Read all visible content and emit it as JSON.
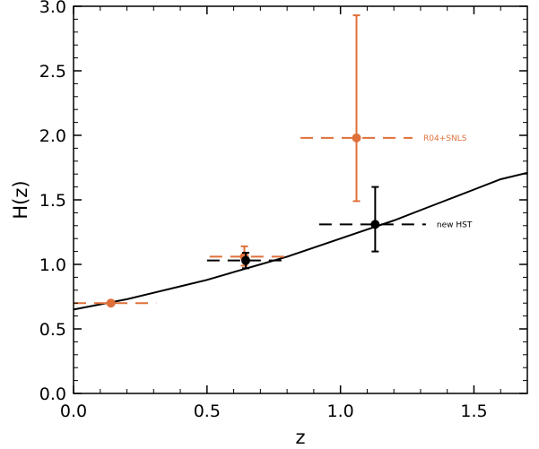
{
  "colors": {
    "model": "#000000",
    "r04_snls": "#e0703a",
    "new_hst": "#000000"
  },
  "chart_data": {
    "type": "scatter",
    "title": "",
    "xlabel": "z",
    "ylabel": "H(z)",
    "xlim": [
      0.0,
      1.7
    ],
    "ylim": [
      0.0,
      3.0
    ],
    "xticks": [
      0.0,
      0.5,
      1.0,
      1.5
    ],
    "xtick_labels": [
      "0.0",
      "0.5",
      "1.0",
      "1.5"
    ],
    "yticks": [
      0.0,
      0.5,
      1.0,
      1.5,
      2.0,
      2.5,
      3.0
    ],
    "ytick_labels": [
      "0.0",
      "0.5",
      "1.0",
      "1.5",
      "2.0",
      "2.5",
      "3.0"
    ],
    "grid": false,
    "model_curve": {
      "x": [
        0.0,
        0.1,
        0.2,
        0.3,
        0.4,
        0.5,
        0.6,
        0.7,
        0.8,
        0.9,
        1.0,
        1.1,
        1.2,
        1.3,
        1.4,
        1.5,
        1.6,
        1.7
      ],
      "y": [
        0.65,
        0.69,
        0.73,
        0.78,
        0.83,
        0.88,
        0.94,
        1.0,
        1.06,
        1.13,
        1.2,
        1.27,
        1.34,
        1.42,
        1.5,
        1.58,
        1.66,
        1.71
      ]
    },
    "series": [
      {
        "name": "",
        "color_key": "r04_snls",
        "label": "R04+SNLS",
        "points": [
          {
            "x": 0.14,
            "y": 0.7,
            "xlo": 0.0,
            "xhi": 0.31,
            "ylo": 0.69,
            "yhi": 0.71
          },
          {
            "x": 0.64,
            "y": 1.06,
            "xlo": 0.51,
            "xhi": 0.79,
            "ylo": 0.99,
            "yhi": 1.14
          },
          {
            "x": 1.06,
            "y": 1.98,
            "xlo": 0.85,
            "xhi": 1.27,
            "ylo": 1.49,
            "yhi": 2.93
          }
        ]
      },
      {
        "name": "",
        "color_key": "new_hst",
        "label": "new HST",
        "points": [
          {
            "x": 0.645,
            "y": 1.03,
            "xlo": 0.5,
            "xhi": 0.8,
            "ylo": 0.97,
            "yhi": 1.09
          },
          {
            "x": 1.13,
            "y": 1.31,
            "xlo": 0.92,
            "xhi": 1.32,
            "ylo": 1.1,
            "yhi": 1.6
          }
        ]
      }
    ]
  }
}
